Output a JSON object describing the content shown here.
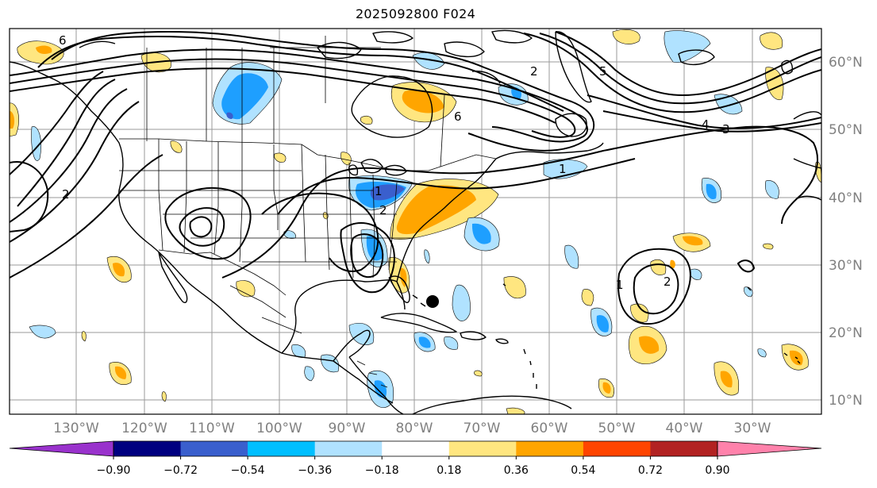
{
  "title": "2025092800 F024",
  "lon_labels": [
    "130°W",
    "120°W",
    "110°W",
    "100°W",
    "90°W",
    "80°W",
    "70°W",
    "60°W",
    "50°W",
    "40°W",
    "30°W"
  ],
  "lat_labels": [
    "60°N",
    "50°N",
    "40°N",
    "30°N",
    "20°N",
    "10°N"
  ],
  "colorbar": {
    "ticks": [
      "−0.90",
      "−0.72",
      "−0.54",
      "−0.36",
      "−0.18",
      "0.18",
      "0.36",
      "0.54",
      "0.72",
      "0.90"
    ],
    "colors": [
      "#9932cc",
      "#000080",
      "#3a5fcd",
      "#00bfff",
      "#b0e2ff",
      "#ffffff",
      "#ffe680",
      "#ffa500",
      "#ff4500",
      "#b22222",
      "#ff82ab"
    ]
  },
  "contour_labels": [
    "6",
    "4",
    "3",
    "2",
    "1",
    "2",
    "6",
    "2",
    "1",
    "1",
    "2",
    "5"
  ],
  "colors": {
    "light_blue": "#b0e2ff",
    "mid_blue": "#1e9fff",
    "deep_blue": "#3a5fcd",
    "light_yellow": "#ffe680",
    "orange": "#ffa500"
  }
}
